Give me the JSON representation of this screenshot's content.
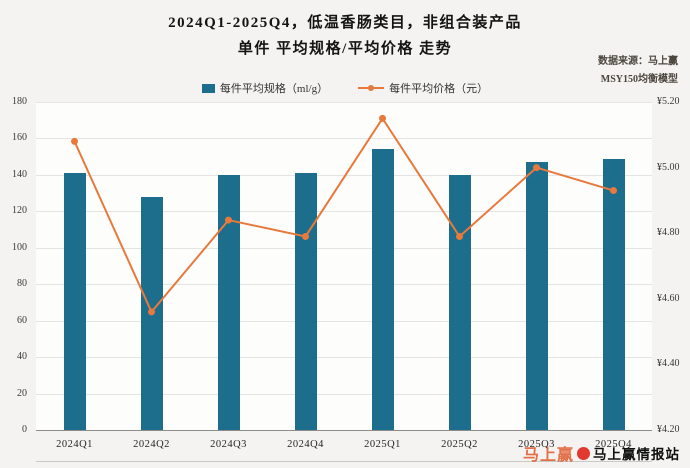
{
  "title": {
    "line1": "2024Q1-2025Q4，低温香肠类目，非组合装产品",
    "line2": "单件 平均规格/平均价格 走势"
  },
  "source": {
    "line1": "数据来源：马上赢",
    "line2": "MSY150均衡模型"
  },
  "legend": {
    "items": [
      {
        "label": "每件平均规格（ml/g）",
        "color": "#1c6e8c",
        "type": "bar"
      },
      {
        "label": "每件平均价格（元）",
        "color": "#e8793c",
        "type": "line"
      }
    ]
  },
  "watermark": {
    "logo_text": "马上赢",
    "logo_color": "#e05a2b",
    "dot_color": "#e0392d",
    "name": "马上赢情报站"
  },
  "chart_data": {
    "type": "bar+line",
    "categories": [
      "2024Q1",
      "2024Q2",
      "2024Q3",
      "2024Q4",
      "2025Q1",
      "2025Q2",
      "2025Q3",
      "2025Q4"
    ],
    "series": [
      {
        "name": "每件平均规格（ml/g）",
        "type": "bar",
        "axis": "left",
        "color": "#1c6e8c",
        "values": [
          141,
          128,
          140,
          141,
          154,
          140,
          147,
          149
        ]
      },
      {
        "name": "每件平均价格（元）",
        "type": "line",
        "axis": "right",
        "color": "#e8793c",
        "values": [
          5.08,
          4.56,
          4.84,
          4.79,
          5.15,
          4.79,
          5.0,
          4.93
        ]
      }
    ],
    "left_axis": {
      "min": 0,
      "max": 180,
      "step": 20,
      "tick_values": [
        0,
        20,
        40,
        60,
        80,
        100,
        120,
        140,
        160,
        180
      ],
      "ticks": [
        "0",
        "20",
        "40",
        "60",
        "80",
        "100",
        "120",
        "140",
        "160",
        "180"
      ]
    },
    "right_axis": {
      "min": 4.2,
      "max": 5.2,
      "step": 0.2,
      "tick_values": [
        4.2,
        4.4,
        4.6,
        4.8,
        5.0,
        5.2
      ],
      "ticks": [
        "¥4.20",
        "¥4.40",
        "¥4.60",
        "¥4.80",
        "¥5.00",
        "¥5.20"
      ]
    },
    "grid": true,
    "legend_position": "top"
  }
}
